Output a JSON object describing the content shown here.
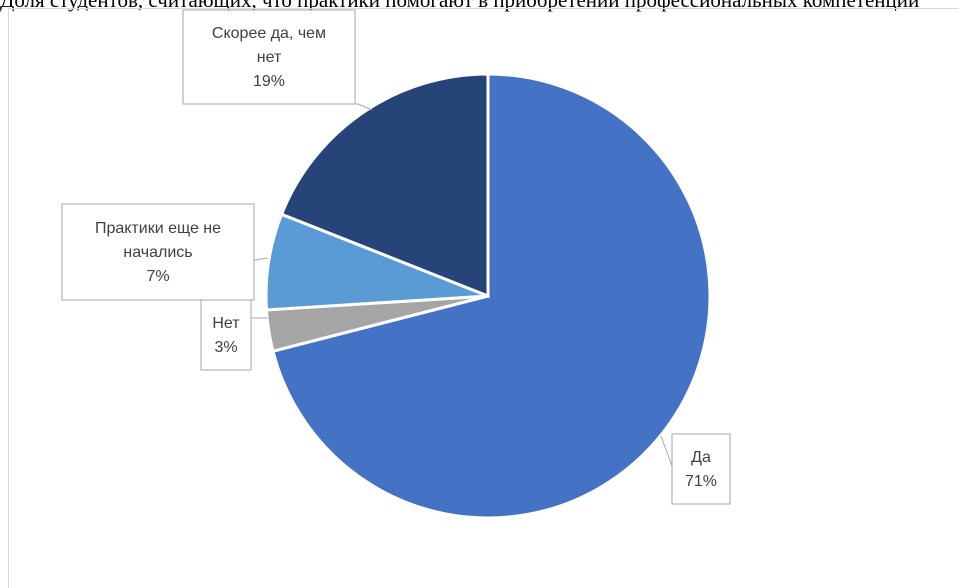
{
  "page": {
    "top_text": "Доля студентов, считающих, что практики помогают в приобретении профессиональных компетенций"
  },
  "chart_data": {
    "type": "pie",
    "title": "",
    "start_angle_deg": 0,
    "direction": "clockwise",
    "slices": [
      {
        "label": "Да",
        "value": 71,
        "pct_label": "71%",
        "color": "#4472C4"
      },
      {
        "label": "Нет",
        "value": 3,
        "pct_label": "3%",
        "color": "#A5A5A5"
      },
      {
        "label": "Практики еще не начались",
        "value": 7,
        "pct_label": "7%",
        "color": "#5B9BD5"
      },
      {
        "label": "Скорее да, чем нет",
        "value": 19,
        "pct_label": "19%",
        "color": "#264478"
      }
    ],
    "label_lines": [
      {
        "slice": 0,
        "lines": [
          "Да",
          "71%"
        ]
      },
      {
        "slice": 1,
        "lines": [
          "Нет",
          "3%"
        ]
      },
      {
        "slice": 2,
        "lines": [
          "Практики еще не",
          "начались",
          "7%"
        ]
      },
      {
        "slice": 3,
        "lines": [
          "Скорее да, чем",
          "нет",
          "19%"
        ]
      }
    ]
  }
}
